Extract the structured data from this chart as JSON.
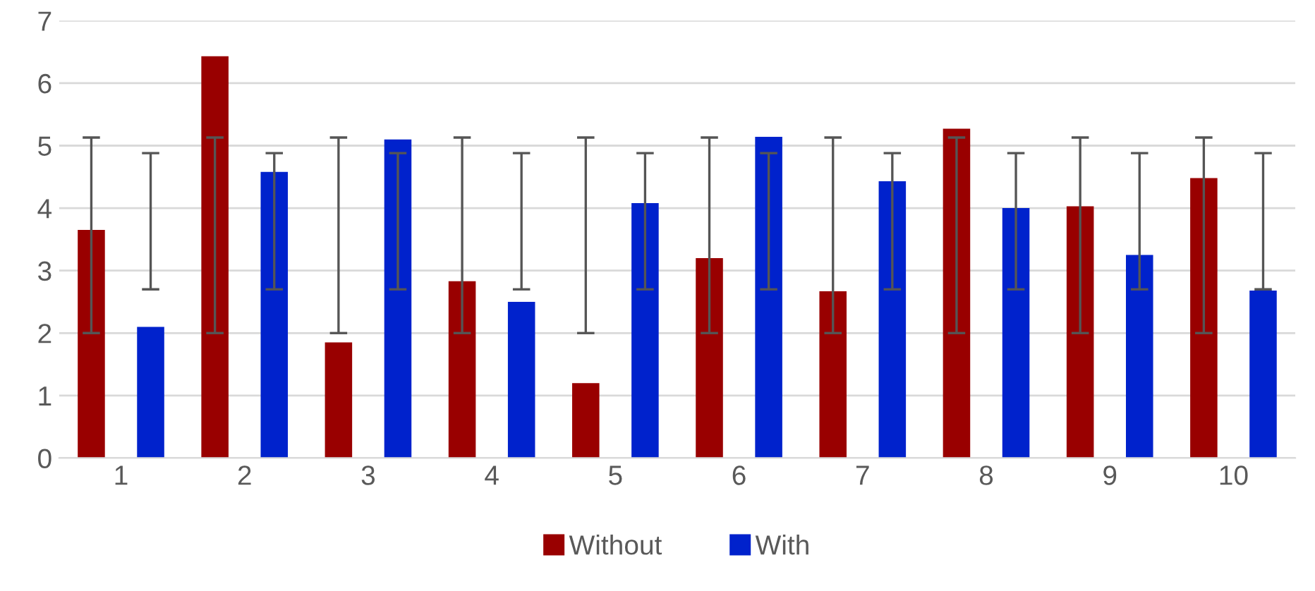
{
  "chart_data": {
    "type": "bar",
    "categories": [
      "1",
      "2",
      "3",
      "4",
      "5",
      "6",
      "7",
      "8",
      "9",
      "10"
    ],
    "series": [
      {
        "name": "Without",
        "color": "#990000",
        "values": [
          3.65,
          6.43,
          1.85,
          2.83,
          1.2,
          3.2,
          2.67,
          5.27,
          4.03,
          4.48
        ],
        "errors": [
          [
            2.0,
            5.13
          ],
          [
            2.0,
            5.13
          ],
          [
            2.0,
            5.13
          ],
          [
            2.0,
            5.13
          ],
          [
            2.0,
            5.13
          ],
          [
            2.0,
            5.13
          ],
          [
            2.0,
            5.13
          ],
          [
            2.0,
            5.13
          ],
          [
            2.0,
            5.13
          ],
          [
            2.0,
            5.13
          ]
        ]
      },
      {
        "name": "With",
        "color": "#0022cc",
        "values": [
          2.1,
          4.58,
          5.1,
          2.5,
          4.08,
          5.14,
          4.43,
          4.0,
          3.25,
          2.68
        ],
        "errors": [
          [
            2.7,
            4.88
          ],
          [
            2.7,
            4.88
          ],
          [
            2.7,
            4.88
          ],
          [
            2.7,
            4.88
          ],
          [
            2.7,
            4.88
          ],
          [
            2.7,
            4.88
          ],
          [
            2.7,
            4.88
          ],
          [
            2.7,
            4.88
          ],
          [
            2.7,
            4.88
          ],
          [
            2.7,
            4.88
          ]
        ]
      }
    ],
    "ylim": [
      0,
      7
    ],
    "yticks": [
      0,
      1,
      2,
      3,
      4,
      5,
      6,
      7
    ],
    "grid": "y",
    "legend": "bottom"
  }
}
